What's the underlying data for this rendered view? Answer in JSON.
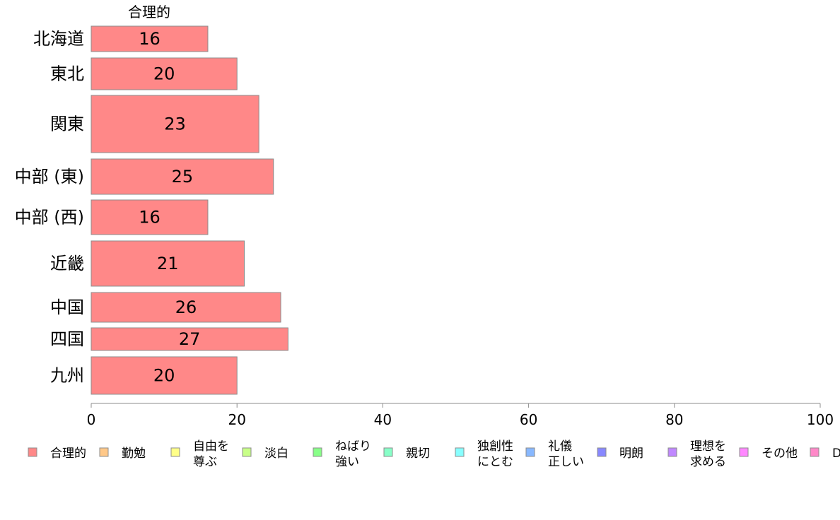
{
  "chart_data": {
    "type": "bar",
    "orientation": "horizontal",
    "column_title": "合理的",
    "categories": [
      "北海道",
      "東北",
      "関東",
      "中部 (東)",
      "中部 (西)",
      "近畿",
      "中国",
      "四国",
      "九州"
    ],
    "series": [
      {
        "name": "合理的",
        "values": [
          16,
          20,
          23,
          25,
          16,
          21,
          26,
          27,
          20
        ],
        "color": "#ff8888"
      }
    ],
    "xlim": [
      0,
      100
    ],
    "xticks": [
      0,
      20,
      40,
      60,
      80,
      100
    ],
    "grid": false,
    "legend_position": "bottom",
    "legend": [
      {
        "lines": [
          "合理的"
        ],
        "color": "#ff8888"
      },
      {
        "lines": [
          "勤勉"
        ],
        "color": "#ffc888"
      },
      {
        "lines": [
          "自由を",
          "尊ぶ"
        ],
        "color": "#ffff88"
      },
      {
        "lines": [
          "淡白"
        ],
        "color": "#c8ff88"
      },
      {
        "lines": [
          "ねばり",
          "強い"
        ],
        "color": "#88ff88"
      },
      {
        "lines": [
          "親切"
        ],
        "color": "#88ffc8"
      },
      {
        "lines": [
          "独創性",
          "にとむ"
        ],
        "color": "#88ffff"
      },
      {
        "lines": [
          "礼儀",
          "正しい"
        ],
        "color": "#88b8ff"
      },
      {
        "lines": [
          "明朗"
        ],
        "color": "#8888ff"
      },
      {
        "lines": [
          "理想を",
          "求める"
        ],
        "color": "#c088ff"
      },
      {
        "lines": [
          "その他"
        ],
        "color": "#ff88ff"
      },
      {
        "lines": [
          "D"
        ],
        "color": "#ff88c8"
      }
    ]
  }
}
